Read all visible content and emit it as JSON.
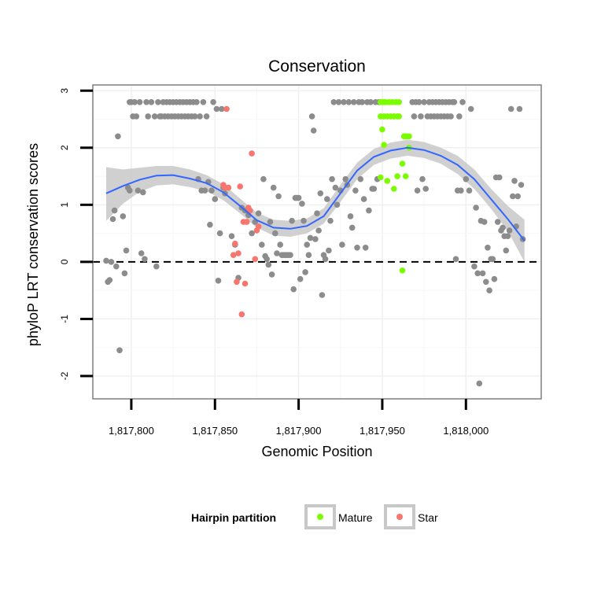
{
  "chart_data": {
    "type": "scatter",
    "title": "Conservation",
    "xlabel": "Genomic Position",
    "ylabel": "phyloP LRT conservation scores",
    "xlim": [
      1817777,
      1818045
    ],
    "ylim": [
      -2.4,
      3.1
    ],
    "x_ticks": [
      1817800,
      1817850,
      1817900,
      1817950,
      1818000
    ],
    "x_tick_labels": [
      "1,817,800",
      "1,817,850",
      "1,817,900",
      "1,817,950",
      "1,818,000"
    ],
    "y_ticks": [
      -2,
      -1,
      0,
      1,
      2,
      3
    ],
    "y_tick_labels": [
      "-2",
      "-1",
      "0",
      "1",
      "2",
      "3"
    ],
    "reference_line": {
      "y": 0,
      "style": "dashed"
    },
    "grid": true,
    "legend": {
      "title": "Hairpin partition",
      "position": "bottom",
      "entries": [
        {
          "label": "Mature",
          "color": "#7CFC00"
        },
        {
          "label": "Star",
          "color": "#F8766D"
        }
      ]
    },
    "colors": {
      "other": "#8C8C8C",
      "mature": "#7CFC00",
      "star": "#F8766D",
      "smooth": "#3366FF",
      "band": "#C8C8C8"
    },
    "series": [
      {
        "name": "Other",
        "points": [
          [
            1817785,
            0.02
          ],
          [
            1817786,
            -0.35
          ],
          [
            1817787,
            -0.32
          ],
          [
            1817788,
            0.0
          ],
          [
            1817789,
            0.75
          ],
          [
            1817790,
            0.9
          ],
          [
            1817791,
            -0.08
          ],
          [
            1817792,
            2.2
          ],
          [
            1817793,
            -1.55
          ],
          [
            1817795,
            0.8
          ],
          [
            1817796,
            -0.2
          ],
          [
            1817797,
            0.2
          ],
          [
            1817798,
            1.3
          ],
          [
            1817799,
            1.25
          ],
          [
            1817799,
            2.8
          ],
          [
            1817800,
            2.8
          ],
          [
            1817801,
            2.55
          ],
          [
            1817802,
            2.8
          ],
          [
            1817803,
            2.55
          ],
          [
            1817804,
            1.25
          ],
          [
            1817805,
            2.8
          ],
          [
            1817806,
            0.15
          ],
          [
            1817807,
            1.22
          ],
          [
            1817808,
            0.05
          ],
          [
            1817809,
            2.8
          ],
          [
            1817810,
            2.55
          ],
          [
            1817812,
            2.8
          ],
          [
            1817814,
            2.55
          ],
          [
            1817815,
            -0.08
          ],
          [
            1817816,
            2.8
          ],
          [
            1817817,
            2.55
          ],
          [
            1817818,
            2.55
          ],
          [
            1817819,
            2.8
          ],
          [
            1817820,
            2.55
          ],
          [
            1817821,
            2.8
          ],
          [
            1817822,
            2.55
          ],
          [
            1817823,
            2.8
          ],
          [
            1817824,
            2.55
          ],
          [
            1817825,
            2.8
          ],
          [
            1817826,
            2.55
          ],
          [
            1817827,
            2.8
          ],
          [
            1817828,
            2.55
          ],
          [
            1817829,
            2.8
          ],
          [
            1817830,
            2.55
          ],
          [
            1817831,
            2.8
          ],
          [
            1817832,
            2.55
          ],
          [
            1817833,
            2.8
          ],
          [
            1817834,
            2.55
          ],
          [
            1817835,
            2.8
          ],
          [
            1817836,
            2.55
          ],
          [
            1817837,
            2.8
          ],
          [
            1817838,
            2.55
          ],
          [
            1817839,
            2.8
          ],
          [
            1817840,
            1.45
          ],
          [
            1817841,
            2.55
          ],
          [
            1817842,
            1.25
          ],
          [
            1817843,
            2.8
          ],
          [
            1817844,
            1.25
          ],
          [
            1817845,
            2.55
          ],
          [
            1817846,
            1.4
          ],
          [
            1817847,
            0.65
          ],
          [
            1817848,
            1.25
          ],
          [
            1817849,
            2.8
          ],
          [
            1817850,
            1.1
          ],
          [
            1817851,
            2.68
          ],
          [
            1817852,
            -0.33
          ],
          [
            1817853,
            0.5
          ],
          [
            1817854,
            2.68
          ],
          [
            1817855,
            1.3
          ],
          [
            1817856,
            1.2
          ],
          [
            1817858,
            1.3
          ],
          [
            1817860,
            0.45
          ],
          [
            1817862,
            0.3
          ],
          [
            1817864,
            -0.28
          ],
          [
            1817866,
            0.95
          ],
          [
            1817868,
            0.9
          ],
          [
            1817870,
            0.82
          ],
          [
            1817872,
            0.5
          ],
          [
            1817874,
            0.7
          ],
          [
            1817876,
            0.85
          ],
          [
            1817878,
            0.3
          ],
          [
            1817879,
            1.45
          ],
          [
            1817880,
            0.1
          ],
          [
            1817881,
            0.05
          ],
          [
            1817882,
            -0.05
          ],
          [
            1817883,
            0.7
          ],
          [
            1817884,
            -0.22
          ],
          [
            1817885,
            1.3
          ],
          [
            1817886,
            0.5
          ],
          [
            1817887,
            0.15
          ],
          [
            1817888,
            1.15
          ],
          [
            1817889,
            0.3
          ],
          [
            1817890,
            0.12
          ],
          [
            1817891,
            0.12
          ],
          [
            1817892,
            0.12
          ],
          [
            1817893,
            0.12
          ],
          [
            1817894,
            0.12
          ],
          [
            1817895,
            0.12
          ],
          [
            1817896,
            0.72
          ],
          [
            1817897,
            -0.48
          ],
          [
            1817898,
            1.12
          ],
          [
            1817899,
            1.12
          ],
          [
            1817900,
            1.12
          ],
          [
            1817901,
            -0.3
          ],
          [
            1817902,
            1.02
          ],
          [
            1817903,
            0.72
          ],
          [
            1817904,
            -0.18
          ],
          [
            1817905,
            0.3
          ],
          [
            1817906,
            0.12
          ],
          [
            1817907,
            0.42
          ],
          [
            1817908,
            2.55
          ],
          [
            1817909,
            2.3
          ],
          [
            1817910,
            0.4
          ],
          [
            1817911,
            0.85
          ],
          [
            1817912,
            0.55
          ],
          [
            1817913,
            1.2
          ],
          [
            1817914,
            -0.58
          ],
          [
            1817915,
            0.12
          ],
          [
            1817916,
            0.05
          ],
          [
            1817917,
            1.1
          ],
          [
            1817918,
            0.2
          ],
          [
            1817919,
            0.72
          ],
          [
            1817920,
            1.45
          ],
          [
            1817921,
            2.8
          ],
          [
            1817922,
            1.3
          ],
          [
            1817923,
            1.0
          ],
          [
            1817924,
            2.8
          ],
          [
            1817925,
            1.25
          ],
          [
            1817926,
            0.3
          ],
          [
            1817927,
            2.8
          ],
          [
            1817928,
            1.45
          ],
          [
            1817929,
            1.35
          ],
          [
            1817930,
            2.8
          ],
          [
            1817931,
            0.8
          ],
          [
            1817932,
            0.6
          ],
          [
            1817933,
            2.8
          ],
          [
            1817934,
            1.25
          ],
          [
            1817935,
            0.25
          ],
          [
            1817936,
            2.8
          ],
          [
            1817937,
            1.45
          ],
          [
            1817938,
            2.8
          ],
          [
            1817939,
            1.1
          ],
          [
            1817940,
            0.25
          ],
          [
            1817941,
            2.8
          ],
          [
            1817942,
            0.9
          ],
          [
            1817943,
            2.8
          ],
          [
            1817944,
            1.28
          ],
          [
            1817945,
            1.28
          ],
          [
            1817946,
            2.8
          ],
          [
            1817947,
            1.45
          ],
          [
            1817948,
            2.8
          ],
          [
            1817968,
            2.8
          ],
          [
            1817969,
            2.55
          ],
          [
            1817970,
            2.8
          ],
          [
            1817971,
            1.25
          ],
          [
            1817972,
            2.8
          ],
          [
            1817973,
            2.55
          ],
          [
            1817974,
            1.45
          ],
          [
            1817975,
            2.8
          ],
          [
            1817976,
            1.28
          ],
          [
            1817977,
            2.55
          ],
          [
            1817978,
            2.8
          ],
          [
            1817979,
            2.55
          ],
          [
            1817980,
            2.8
          ],
          [
            1817981,
            2.55
          ],
          [
            1817982,
            2.8
          ],
          [
            1817983,
            2.55
          ],
          [
            1817984,
            2.8
          ],
          [
            1817985,
            2.55
          ],
          [
            1817986,
            2.8
          ],
          [
            1817987,
            2.55
          ],
          [
            1817988,
            2.8
          ],
          [
            1817989,
            2.55
          ],
          [
            1817990,
            2.8
          ],
          [
            1817991,
            2.55
          ],
          [
            1817992,
            2.8
          ],
          [
            1817993,
            2.8
          ],
          [
            1817994,
            0.05
          ],
          [
            1817995,
            1.25
          ],
          [
            1817996,
            2.55
          ],
          [
            1817997,
            1.25
          ],
          [
            1817998,
            2.8
          ],
          [
            1818000,
            1.45
          ],
          [
            1818002,
            1.25
          ],
          [
            1818003,
            2.68
          ],
          [
            1818005,
            -0.08
          ],
          [
            1818006,
            0.95
          ],
          [
            1818007,
            -0.2
          ],
          [
            1818008,
            -2.13
          ],
          [
            1818009,
            0.72
          ],
          [
            1818010,
            -0.2
          ],
          [
            1818011,
            0.7
          ],
          [
            1818012,
            -0.35
          ],
          [
            1818013,
            0.25
          ],
          [
            1818014,
            -0.5
          ],
          [
            1818015,
            0.05
          ],
          [
            1818016,
            0.05
          ],
          [
            1818017,
            -0.3
          ],
          [
            1818018,
            1.48
          ],
          [
            1818019,
            0.7
          ],
          [
            1818020,
            1.48
          ],
          [
            1818021,
            0.55
          ],
          [
            1818022,
            0.6
          ],
          [
            1818023,
            0.45
          ],
          [
            1818024,
            0.2
          ],
          [
            1818025,
            0.45
          ],
          [
            1818026,
            0.55
          ],
          [
            1818027,
            2.68
          ],
          [
            1818028,
            1.15
          ],
          [
            1818029,
            1.42
          ],
          [
            1818030,
            0.62
          ],
          [
            1818031,
            1.15
          ],
          [
            1818032,
            2.68
          ],
          [
            1818033,
            1.35
          ],
          [
            1818034,
            0.4
          ]
        ]
      },
      {
        "name": "Mature",
        "points": [
          [
            1817949,
            2.8
          ],
          [
            1817950,
            2.8
          ],
          [
            1817951,
            2.8
          ],
          [
            1817952,
            2.8
          ],
          [
            1817954,
            2.8
          ],
          [
            1817956,
            2.8
          ],
          [
            1817958,
            2.8
          ],
          [
            1817960,
            2.8
          ],
          [
            1817949,
            2.55
          ],
          [
            1817951,
            2.55
          ],
          [
            1817953,
            2.55
          ],
          [
            1817955,
            2.55
          ],
          [
            1817957,
            2.55
          ],
          [
            1817959,
            2.55
          ],
          [
            1817960,
            2.55
          ],
          [
            1817950,
            2.32
          ],
          [
            1817963,
            2.2
          ],
          [
            1817964,
            2.2
          ],
          [
            1817965,
            2.2
          ],
          [
            1817966,
            2.2
          ],
          [
            1817949,
            1.48
          ],
          [
            1817953,
            1.42
          ],
          [
            1817957,
            1.28
          ],
          [
            1817959,
            1.5
          ],
          [
            1817962,
            1.72
          ],
          [
            1817964,
            1.5
          ],
          [
            1817962,
            -0.15
          ],
          [
            1817966,
            2.0
          ],
          [
            1817951,
            2.05
          ]
        ]
      },
      {
        "name": "Star",
        "points": [
          [
            1817857,
            2.68
          ],
          [
            1817855,
            1.35
          ],
          [
            1817856,
            1.3
          ],
          [
            1817858,
            1.3
          ],
          [
            1817861,
            0.12
          ],
          [
            1817862,
            0.32
          ],
          [
            1817863,
            -0.35
          ],
          [
            1817864,
            0.15
          ],
          [
            1817865,
            1.32
          ],
          [
            1817866,
            -0.92
          ],
          [
            1817867,
            0.7
          ],
          [
            1817868,
            -0.38
          ],
          [
            1817869,
            0.7
          ],
          [
            1817870,
            0.95
          ],
          [
            1817871,
            0.9
          ],
          [
            1817872,
            1.9
          ],
          [
            1817874,
            0.05
          ],
          [
            1817875,
            0.55
          ],
          [
            1817876,
            0.62
          ]
        ]
      }
    ],
    "smooth_curve": {
      "x": [
        1817785,
        1817795,
        1817805,
        1817815,
        1817825,
        1817835,
        1817845,
        1817855,
        1817865,
        1817875,
        1817885,
        1817895,
        1817905,
        1817915,
        1817925,
        1817935,
        1817945,
        1817955,
        1817965,
        1817975,
        1817985,
        1817995,
        1818005,
        1818015,
        1818025,
        1818035
      ],
      "y": [
        1.2,
        1.33,
        1.44,
        1.51,
        1.52,
        1.46,
        1.38,
        1.22,
        0.98,
        0.73,
        0.6,
        0.58,
        0.63,
        0.8,
        1.2,
        1.6,
        1.84,
        1.95,
        2.0,
        1.96,
        1.86,
        1.7,
        1.45,
        1.1,
        0.75,
        0.37
      ],
      "lower": [
        0.72,
        1.02,
        1.23,
        1.34,
        1.36,
        1.31,
        1.24,
        1.08,
        0.85,
        0.6,
        0.46,
        0.44,
        0.5,
        0.67,
        1.05,
        1.45,
        1.7,
        1.81,
        1.86,
        1.82,
        1.72,
        1.54,
        1.28,
        0.93,
        0.54,
        0.0
      ],
      "upper": [
        1.66,
        1.62,
        1.65,
        1.68,
        1.68,
        1.62,
        1.52,
        1.36,
        1.11,
        0.86,
        0.74,
        0.72,
        0.76,
        0.94,
        1.35,
        1.74,
        1.98,
        2.09,
        2.14,
        2.1,
        2.0,
        1.86,
        1.62,
        1.28,
        0.98,
        0.74
      ]
    }
  }
}
